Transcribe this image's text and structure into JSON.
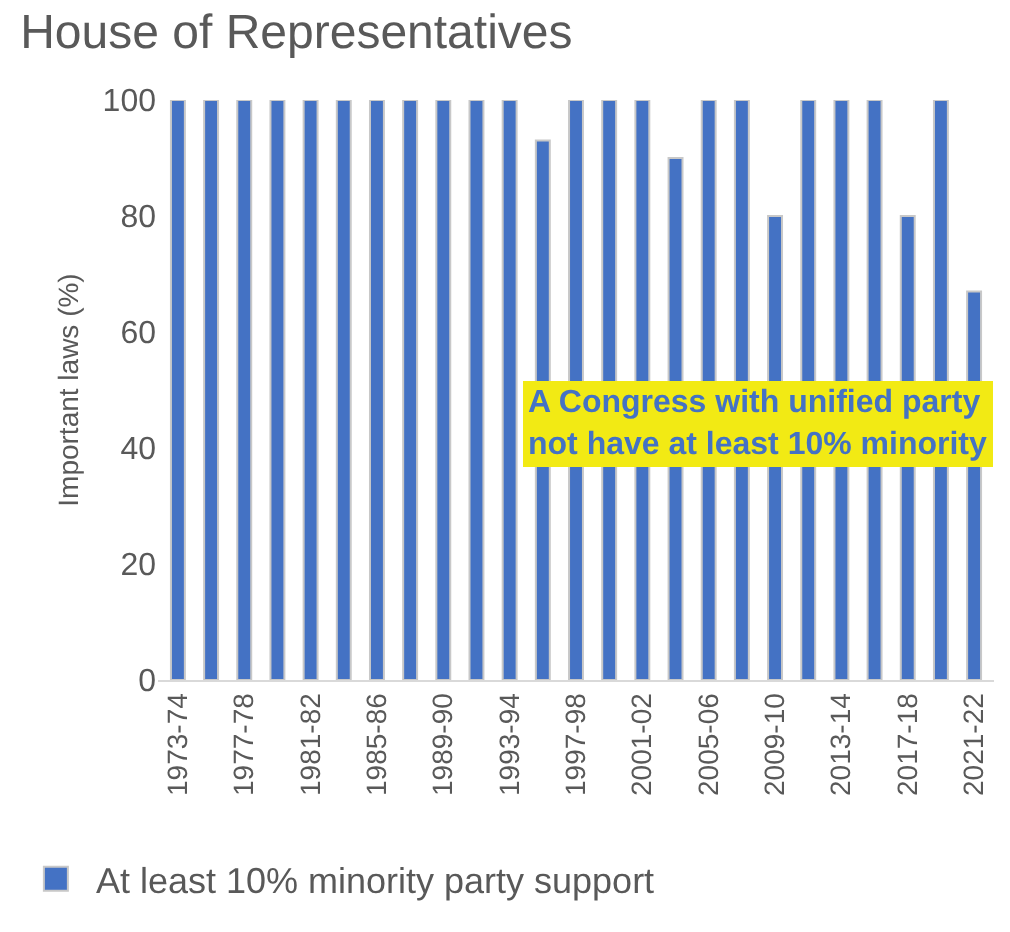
{
  "chart_data": {
    "type": "bar",
    "title": "House of Representatives",
    "ylabel": "Important laws (%)",
    "categories": [
      "1973-74",
      null,
      "1977-78",
      null,
      "1981-82",
      null,
      "1985-86",
      null,
      "1989-90",
      null,
      "1993-94",
      null,
      "1997-98",
      null,
      "2001-02",
      null,
      "2005-06",
      null,
      "2009-10",
      null,
      "2013-14",
      null,
      "2017-18",
      null,
      "2021-22"
    ],
    "series": [
      {
        "name": "At least 10% minority party support",
        "color": "#4472c4",
        "values": [
          100,
          100,
          100,
          100,
          100,
          100,
          100,
          100,
          100,
          100,
          100,
          93,
          100,
          100,
          100,
          90,
          100,
          100,
          80,
          100,
          100,
          100,
          80,
          100,
          67
        ]
      }
    ],
    "ylim": [
      0,
      100
    ],
    "yticks": [
      0,
      20,
      40,
      60,
      80,
      100
    ],
    "legend": "bottom",
    "annotations": [
      "A Congress with unified party\nnot have at least 10% minority"
    ]
  }
}
